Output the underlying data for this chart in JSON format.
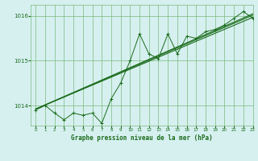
{
  "title": "Graphe pression niveau de la mer (hPa)",
  "bg_color": "#d6f0f0",
  "grid_color": "#7ab87a",
  "line_color": "#1a6b1a",
  "xlim": [
    -0.5,
    23
  ],
  "ylim": [
    1013.55,
    1016.25
  ],
  "yticks": [
    1014,
    1015,
    1016
  ],
  "xticks": [
    0,
    1,
    2,
    3,
    4,
    5,
    6,
    7,
    8,
    9,
    10,
    11,
    12,
    13,
    14,
    15,
    16,
    17,
    18,
    19,
    20,
    21,
    22,
    23
  ],
  "hourly_data": {
    "x": [
      0,
      1,
      2,
      3,
      4,
      5,
      6,
      7,
      8,
      9,
      10,
      11,
      12,
      13,
      14,
      15,
      16,
      17,
      18,
      19,
      20,
      21,
      22,
      23
    ],
    "y": [
      1013.9,
      1014.0,
      1013.83,
      1013.68,
      1013.83,
      1013.78,
      1013.83,
      1013.6,
      1014.15,
      1014.5,
      1015.0,
      1015.6,
      1015.15,
      1015.05,
      1015.6,
      1015.15,
      1015.55,
      1015.5,
      1015.65,
      1015.7,
      1015.8,
      1015.95,
      1016.1,
      1015.95
    ]
  },
  "trend_line1": {
    "x": [
      0,
      23
    ],
    "y": [
      1013.92,
      1015.97
    ]
  },
  "trend_line2": {
    "x": [
      0,
      23
    ],
    "y": [
      1013.92,
      1016.05
    ]
  },
  "trend_line3": {
    "x": [
      0,
      23
    ],
    "y": [
      1013.92,
      1016.02
    ]
  }
}
